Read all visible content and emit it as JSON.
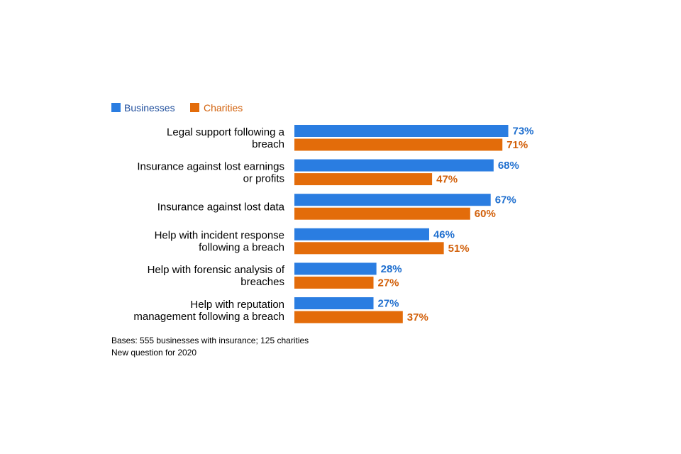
{
  "chart_data": {
    "type": "bar",
    "orientation": "horizontal",
    "categories": [
      [
        "Legal support following a",
        "breach"
      ],
      [
        "Insurance against lost earnings",
        "or profits"
      ],
      [
        "Insurance against lost data"
      ],
      [
        "Help with incident response",
        "following a breach"
      ],
      [
        "Help with forensic analysis of",
        "breaches"
      ],
      [
        "Help with reputation",
        "management following a breach"
      ]
    ],
    "series": [
      {
        "name": "Businesses",
        "color": "#2a7de1",
        "label_color": "#1f6fcf",
        "values": [
          73,
          68,
          67,
          46,
          28,
          27
        ],
        "labels": [
          "73%",
          "68%",
          "67%",
          "46%",
          "28%",
          "27%"
        ]
      },
      {
        "name": "Charities",
        "color": "#e36c0a",
        "label_color": "#d2600a",
        "values": [
          71,
          47,
          60,
          51,
          27,
          37
        ],
        "labels": [
          "71%",
          "47%",
          "60%",
          "51%",
          "27%",
          "37%"
        ]
      }
    ],
    "xlim": [
      0,
      100
    ],
    "grid": false,
    "legend_position": "top-left",
    "legend_text_colors": [
      "#1f4e9c",
      "#d2600a"
    ]
  },
  "notes": {
    "line1": "Bases: 555 businesses with insurance; 125 charities",
    "line2": "New question for 2020"
  }
}
